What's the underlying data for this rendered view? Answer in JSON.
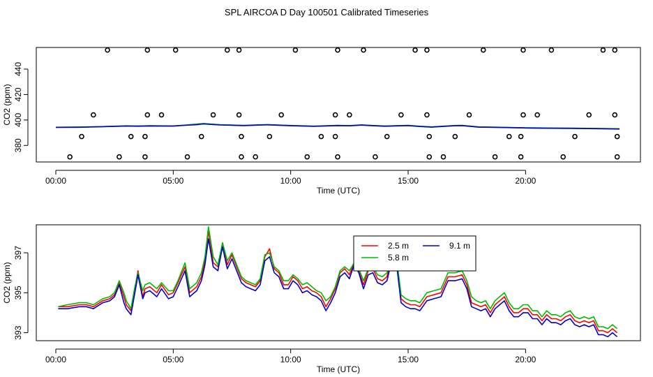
{
  "title": "SPL AIRCOA D  Day 100501  Calibrated Timeseries",
  "chart_data": [
    {
      "type": "scatter+line",
      "ylabel": "CO2 (ppm)",
      "xlabel": "Time (UTC)",
      "xlim": [
        0,
        24
      ],
      "ylim": [
        367,
        457
      ],
      "x_ticks": [
        {
          "value": 0,
          "label": "00:00"
        },
        {
          "value": 5,
          "label": "05:00"
        },
        {
          "value": 10,
          "label": "10:00"
        },
        {
          "value": 15,
          "label": "15:00"
        },
        {
          "value": 20,
          "label": "20:00"
        }
      ],
      "y_ticks": [
        {
          "value": 380,
          "label": "380"
        },
        {
          "value": 400,
          "label": "400"
        },
        {
          "value": 420,
          "label": "420"
        },
        {
          "value": 440,
          "label": "440"
        }
      ],
      "standards_points": [
        {
          "x": 2.2,
          "y": 455
        },
        {
          "x": 3.9,
          "y": 455
        },
        {
          "x": 5.1,
          "y": 455
        },
        {
          "x": 7.3,
          "y": 455
        },
        {
          "x": 7.8,
          "y": 455
        },
        {
          "x": 10.2,
          "y": 455
        },
        {
          "x": 12.0,
          "y": 455
        },
        {
          "x": 13.1,
          "y": 455
        },
        {
          "x": 15.3,
          "y": 455
        },
        {
          "x": 15.8,
          "y": 455
        },
        {
          "x": 18.2,
          "y": 455
        },
        {
          "x": 19.9,
          "y": 455
        },
        {
          "x": 21.1,
          "y": 455
        },
        {
          "x": 23.3,
          "y": 455
        },
        {
          "x": 23.8,
          "y": 455
        },
        {
          "x": 1.6,
          "y": 404
        },
        {
          "x": 3.9,
          "y": 404
        },
        {
          "x": 4.5,
          "y": 404
        },
        {
          "x": 6.7,
          "y": 404
        },
        {
          "x": 7.8,
          "y": 404
        },
        {
          "x": 9.6,
          "y": 404
        },
        {
          "x": 11.9,
          "y": 404
        },
        {
          "x": 12.5,
          "y": 404
        },
        {
          "x": 14.7,
          "y": 404
        },
        {
          "x": 15.8,
          "y": 404
        },
        {
          "x": 17.6,
          "y": 404
        },
        {
          "x": 19.9,
          "y": 404
        },
        {
          "x": 20.5,
          "y": 404
        },
        {
          "x": 22.7,
          "y": 404
        },
        {
          "x": 23.8,
          "y": 404
        },
        {
          "x": 1.1,
          "y": 387
        },
        {
          "x": 3.2,
          "y": 387
        },
        {
          "x": 3.8,
          "y": 387
        },
        {
          "x": 6.2,
          "y": 387
        },
        {
          "x": 7.9,
          "y": 387
        },
        {
          "x": 9.1,
          "y": 387
        },
        {
          "x": 11.3,
          "y": 387
        },
        {
          "x": 11.9,
          "y": 387
        },
        {
          "x": 14.1,
          "y": 387
        },
        {
          "x": 15.9,
          "y": 387
        },
        {
          "x": 17.0,
          "y": 387
        },
        {
          "x": 19.3,
          "y": 387
        },
        {
          "x": 19.8,
          "y": 387
        },
        {
          "x": 22.1,
          "y": 387
        },
        {
          "x": 23.9,
          "y": 387
        },
        {
          "x": 0.6,
          "y": 371
        },
        {
          "x": 2.7,
          "y": 371
        },
        {
          "x": 3.8,
          "y": 371
        },
        {
          "x": 5.6,
          "y": 371
        },
        {
          "x": 7.9,
          "y": 371
        },
        {
          "x": 8.5,
          "y": 371
        },
        {
          "x": 10.7,
          "y": 371
        },
        {
          "x": 12.0,
          "y": 371
        },
        {
          "x": 13.6,
          "y": 371
        },
        {
          "x": 15.9,
          "y": 371
        },
        {
          "x": 16.5,
          "y": 371
        },
        {
          "x": 18.7,
          "y": 371
        },
        {
          "x": 19.8,
          "y": 371
        },
        {
          "x": 21.6,
          "y": 371
        },
        {
          "x": 23.9,
          "y": 371
        }
      ],
      "series": [
        {
          "name": "2.5 m",
          "color": "#ff0000",
          "x": [
            0,
            1,
            2,
            3,
            3.5,
            4,
            5,
            5.5,
            6,
            6.3,
            6.6,
            7,
            8,
            9,
            10,
            11,
            12,
            12.5,
            13,
            13.5,
            14,
            15,
            15.5,
            16,
            17,
            17.3,
            18,
            19,
            20,
            21,
            22,
            23,
            24
          ],
          "y": [
            394.3,
            394.4,
            394.8,
            395.3,
            395.2,
            395.4,
            395.3,
            395.9,
            396.5,
            397.1,
            396.6,
            396.2,
            395.7,
            396.3,
            395.6,
            395.1,
            395.7,
            395.5,
            396.1,
            395.6,
            395.2,
            395.7,
            395.0,
            394.5,
            395.6,
            395.7,
            394.5,
            394.2,
            393.8,
            393.6,
            393.5,
            393.3,
            393.0
          ]
        },
        {
          "name": "5.8 m",
          "color": "#00bb00",
          "x": [
            0,
            1,
            2,
            3,
            3.5,
            4,
            5,
            5.5,
            6,
            6.3,
            6.6,
            7,
            8,
            9,
            10,
            11,
            12,
            12.5,
            13,
            13.5,
            14,
            15,
            15.5,
            16,
            17,
            17.3,
            18,
            19,
            20,
            21,
            22,
            23,
            24
          ],
          "y": [
            394.3,
            394.5,
            394.8,
            395.4,
            395.3,
            395.5,
            395.3,
            396.0,
            396.8,
            397.3,
            396.8,
            396.3,
            395.8,
            396.4,
            395.7,
            395.2,
            395.8,
            395.6,
            396.2,
            395.7,
            395.3,
            395.8,
            395.1,
            394.6,
            395.7,
            395.8,
            394.6,
            394.3,
            393.9,
            393.7,
            393.6,
            393.4,
            393.1
          ]
        },
        {
          "name": "9.1 m",
          "color": "#0000cc",
          "x": [
            0,
            1,
            2,
            3,
            3.5,
            4,
            5,
            5.5,
            6,
            6.3,
            6.6,
            7,
            8,
            9,
            10,
            11,
            12,
            12.5,
            13,
            13.5,
            14,
            15,
            15.5,
            16,
            17,
            17.3,
            18,
            19,
            20,
            21,
            22,
            23,
            24
          ],
          "y": [
            394.2,
            394.3,
            394.7,
            395.2,
            395.1,
            395.3,
            395.2,
            395.8,
            396.3,
            396.9,
            396.5,
            396.1,
            395.6,
            396.2,
            395.5,
            395.0,
            395.6,
            395.4,
            396.0,
            395.5,
            395.1,
            395.6,
            394.9,
            394.4,
            395.5,
            395.6,
            394.4,
            394.1,
            393.7,
            393.5,
            393.4,
            393.2,
            392.9
          ]
        }
      ]
    },
    {
      "type": "line",
      "ylabel": "CO2 (ppm)",
      "xlabel": "Time (UTC)",
      "xlim": [
        0,
        24
      ],
      "ylim": [
        392.6,
        398.4
      ],
      "x_ticks": [
        {
          "value": 0,
          "label": "00:00"
        },
        {
          "value": 5,
          "label": "05:00"
        },
        {
          "value": 10,
          "label": "10:00"
        },
        {
          "value": 15,
          "label": "15:00"
        },
        {
          "value": 20,
          "label": "20:00"
        }
      ],
      "y_ticks": [
        {
          "value": 393,
          "label": "393"
        },
        {
          "value": 395,
          "label": "395"
        },
        {
          "value": 397,
          "label": "397"
        }
      ],
      "legend": {
        "position": "top-center",
        "entries": [
          {
            "label": "2.5 m",
            "color": "#ff0000"
          },
          {
            "label": "9.1 m",
            "color": "#0000cc"
          },
          {
            "label": "5.8 m",
            "color": "#00bb00"
          }
        ]
      },
      "x": [
        0.1,
        0.5,
        1.0,
        1.3,
        1.6,
        2.0,
        2.3,
        2.5,
        2.7,
        2.9,
        3.0,
        3.2,
        3.35,
        3.5,
        3.7,
        3.8,
        4.0,
        4.3,
        4.5,
        4.8,
        5.0,
        5.2,
        5.5,
        5.7,
        6.0,
        6.2,
        6.35,
        6.5,
        6.7,
        6.9,
        7.1,
        7.3,
        7.5,
        7.7,
        7.9,
        8.1,
        8.3,
        8.5,
        8.7,
        8.9,
        9.1,
        9.3,
        9.5,
        9.7,
        9.9,
        10.1,
        10.3,
        10.5,
        10.7,
        10.9,
        11.1,
        11.3,
        11.5,
        11.7,
        11.9,
        12.1,
        12.3,
        12.5,
        12.7,
        12.9,
        13.1,
        13.3,
        13.5,
        13.7,
        13.9,
        14.1,
        14.3,
        14.5,
        14.7,
        14.9,
        15.1,
        15.3,
        15.5,
        15.8,
        16.1,
        16.4,
        16.7,
        17.0,
        17.3,
        17.5,
        17.7,
        17.9,
        18.1,
        18.3,
        18.5,
        18.7,
        18.9,
        19.1,
        19.3,
        19.5,
        19.7,
        19.9,
        20.1,
        20.3,
        20.5,
        20.7,
        20.9,
        21.1,
        21.3,
        21.5,
        21.7,
        21.9,
        22.1,
        22.3,
        22.5,
        22.7,
        22.9,
        23.1,
        23.3,
        23.5,
        23.7,
        23.9
      ],
      "series": [
        {
          "name": "2.5 m",
          "color": "#ff0000",
          "values": [
            394.3,
            394.3,
            394.4,
            394.4,
            394.3,
            394.6,
            394.7,
            394.9,
            395.5,
            394.8,
            394.4,
            394.1,
            395.1,
            396.1,
            394.8,
            395.2,
            395.3,
            395.0,
            395.4,
            394.9,
            395.0,
            395.5,
            396.3,
            395.0,
            395.3,
            395.8,
            396.6,
            398.1,
            396.5,
            396.3,
            397.5,
            396.4,
            396.9,
            396.3,
            395.7,
            395.5,
            395.4,
            395.3,
            395.6,
            396.8,
            397.2,
            396.2,
            396.0,
            395.4,
            395.4,
            395.8,
            395.6,
            395.2,
            395.3,
            395.1,
            395.0,
            394.8,
            394.3,
            394.7,
            395.2,
            396.0,
            396.2,
            395.9,
            396.5,
            396.1,
            395.4,
            396.1,
            396.2,
            395.7,
            395.6,
            395.8,
            396.9,
            396.7,
            394.7,
            394.5,
            394.4,
            394.4,
            394.3,
            394.8,
            394.9,
            395.0,
            395.8,
            395.8,
            395.9,
            395.4,
            394.5,
            394.4,
            394.3,
            394.4,
            394.0,
            394.4,
            394.6,
            394.8,
            394.3,
            394.0,
            394.0,
            394.2,
            394.2,
            393.9,
            393.9,
            393.6,
            393.9,
            393.7,
            393.7,
            393.6,
            393.8,
            393.9,
            393.6,
            393.5,
            393.6,
            393.5,
            393.6,
            393.1,
            393.1,
            393.0,
            393.2,
            393.0
          ]
        },
        {
          "name": "5.8 m",
          "color": "#00bb00",
          "values": [
            394.3,
            394.4,
            394.5,
            394.5,
            394.4,
            394.7,
            394.8,
            395.0,
            395.6,
            395.0,
            394.6,
            394.2,
            395.2,
            396.0,
            395.1,
            395.4,
            395.5,
            395.2,
            395.5,
            395.1,
            395.1,
            395.6,
            396.5,
            395.2,
            395.5,
            396.0,
            396.8,
            398.3,
            396.8,
            396.4,
            397.5,
            396.6,
            397.0,
            396.4,
            395.8,
            395.6,
            395.5,
            395.4,
            395.7,
            396.9,
            397.0,
            396.3,
            396.1,
            395.6,
            395.6,
            395.9,
            395.7,
            395.4,
            395.5,
            395.3,
            395.1,
            395.0,
            394.6,
            394.8,
            395.3,
            396.1,
            396.3,
            396.1,
            396.5,
            396.2,
            395.6,
            396.2,
            396.3,
            395.9,
            395.8,
            396.0,
            396.8,
            396.8,
            394.9,
            394.7,
            394.6,
            394.6,
            394.5,
            395.0,
            395.1,
            395.2,
            396.0,
            396.0,
            396.1,
            395.6,
            394.8,
            394.6,
            394.5,
            394.6,
            394.2,
            394.6,
            394.8,
            395.0,
            394.5,
            394.2,
            394.2,
            394.4,
            394.4,
            394.1,
            394.1,
            393.8,
            394.1,
            393.9,
            393.9,
            393.8,
            394.0,
            394.1,
            393.8,
            393.7,
            393.8,
            393.7,
            393.8,
            393.3,
            393.3,
            393.2,
            393.4,
            393.2
          ]
        },
        {
          "name": "9.1 m",
          "color": "#0000cc",
          "values": [
            394.2,
            394.2,
            394.3,
            394.3,
            394.2,
            394.5,
            394.6,
            394.8,
            395.4,
            394.5,
            394.2,
            393.9,
            394.9,
            395.9,
            394.7,
            395.0,
            395.1,
            394.8,
            395.2,
            394.7,
            394.8,
            395.3,
            396.1,
            394.8,
            395.1,
            395.6,
            396.4,
            397.7,
            396.3,
            396.1,
            397.3,
            396.2,
            396.7,
            396.1,
            395.5,
            395.3,
            395.2,
            395.1,
            395.4,
            396.6,
            396.8,
            396.0,
            395.8,
            395.2,
            395.2,
            395.6,
            395.4,
            395.0,
            395.1,
            394.9,
            394.8,
            394.6,
            394.1,
            394.5,
            395.0,
            395.8,
            396.0,
            395.7,
            396.4,
            396.0,
            395.2,
            395.9,
            396.0,
            395.5,
            395.4,
            395.6,
            396.6,
            396.5,
            394.5,
            394.3,
            394.2,
            394.2,
            394.1,
            394.6,
            394.7,
            394.8,
            395.6,
            395.6,
            395.7,
            395.2,
            394.3,
            394.2,
            394.1,
            394.2,
            393.8,
            394.2,
            394.4,
            394.6,
            394.1,
            393.8,
            393.8,
            394.0,
            394.0,
            393.7,
            393.7,
            393.4,
            393.7,
            393.5,
            393.5,
            393.4,
            393.6,
            393.7,
            393.4,
            393.3,
            393.4,
            393.3,
            393.4,
            392.9,
            392.9,
            392.8,
            393.0,
            392.8
          ]
        }
      ]
    }
  ]
}
